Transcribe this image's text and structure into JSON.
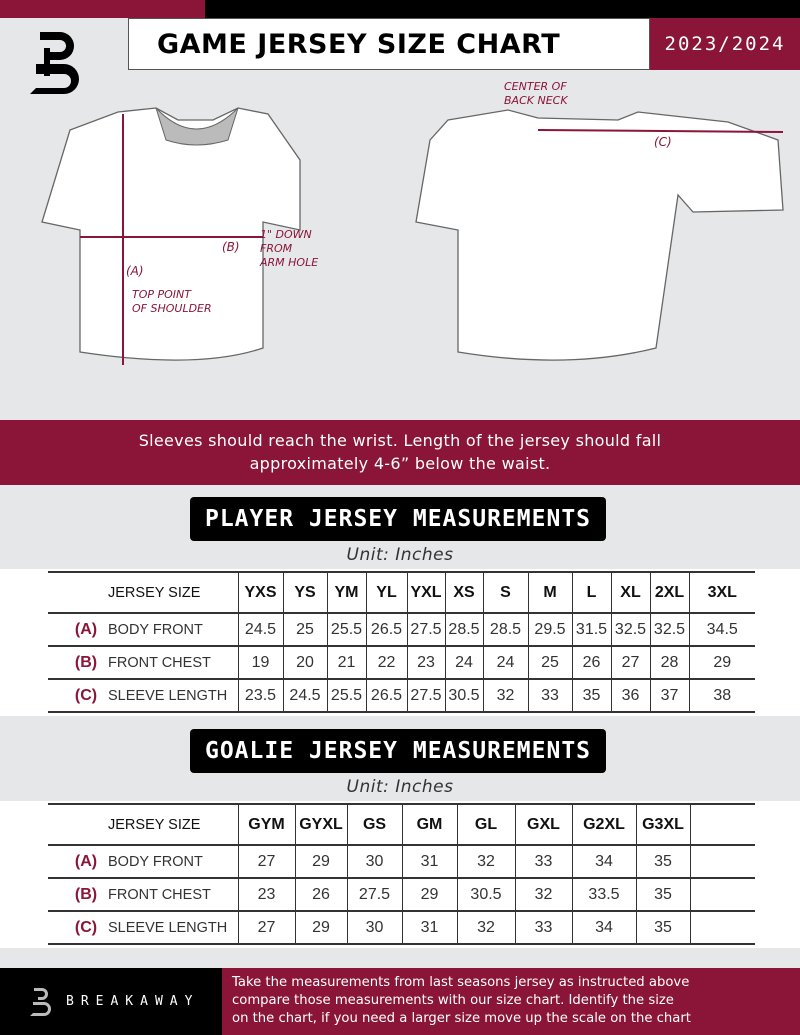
{
  "header": {
    "title": "GAME JERSEY SIZE CHART",
    "season": "2023/2024",
    "logo_letter": "B"
  },
  "diagram": {
    "center_back_neck": [
      "CENTER OF",
      "BACK NECK"
    ],
    "label_a": "(A)",
    "label_b": "(B)",
    "label_c": "(C)",
    "below_armhole": [
      "1\" DOWN",
      "FROM",
      "ARM HOLE"
    ],
    "top_shoulder": [
      "TOP POINT",
      "OF SHOULDER"
    ]
  },
  "banner": {
    "line1": "Sleeves should reach the wrist. Length of the jersey should fall",
    "line2": "approximately 4-6” below the waist."
  },
  "player": {
    "title": "PLAYER JERSEY MEASUREMENTS",
    "unit": "Unit: Inches",
    "header": "JERSEY SIZE",
    "sizes": [
      "YXS",
      "YS",
      "YM",
      "YL",
      "YXL",
      "XS",
      "S",
      "M",
      "L",
      "XL",
      "2XL",
      "3XL"
    ],
    "rows": [
      {
        "letter": "(A)",
        "label": "BODY FRONT",
        "values": [
          "24.5",
          "25",
          "25.5",
          "26.5",
          "27.5",
          "28.5",
          "28.5",
          "29.5",
          "31.5",
          "32.5",
          "32.5",
          "34.5"
        ]
      },
      {
        "letter": "(B)",
        "label": "FRONT CHEST",
        "values": [
          "19",
          "20",
          "21",
          "22",
          "23",
          "24",
          "24",
          "25",
          "26",
          "27",
          "28",
          "29"
        ]
      },
      {
        "letter": "(C)",
        "label": "SLEEVE LENGTH",
        "values": [
          "23.5",
          "24.5",
          "25.5",
          "26.5",
          "27.5",
          "30.5",
          "32",
          "33",
          "35",
          "36",
          "37",
          "38"
        ]
      }
    ]
  },
  "goalie": {
    "title": "GOALIE JERSEY MEASUREMENTS",
    "unit": "Unit: Inches",
    "header": "JERSEY SIZE",
    "sizes": [
      "GYM",
      "GYXL",
      "GS",
      "GM",
      "GL",
      "GXL",
      "G2XL",
      "G3XL",
      ""
    ],
    "rows": [
      {
        "letter": "(A)",
        "label": "BODY FRONT",
        "values": [
          "27",
          "29",
          "30",
          "31",
          "32",
          "33",
          "34",
          "35",
          ""
        ]
      },
      {
        "letter": "(B)",
        "label": "FRONT CHEST",
        "values": [
          "23",
          "26",
          "27.5",
          "29",
          "30.5",
          "32",
          "33.5",
          "35",
          ""
        ]
      },
      {
        "letter": "(C)",
        "label": "SLEEVE LENGTH",
        "values": [
          "27",
          "29",
          "30",
          "31",
          "32",
          "33",
          "34",
          "35",
          ""
        ]
      }
    ]
  },
  "footer": {
    "brand": "BREAKAWAY",
    "instructions": [
      "Take the measurements from last seasons jersey as instructed above",
      "compare those measurements  with our size chart. Identify the size",
      "on the chart, if you need a larger size move up the scale on the chart"
    ]
  },
  "colors": {
    "accent": "#8a1538",
    "black": "#000000",
    "background": "#e6e7e8"
  }
}
